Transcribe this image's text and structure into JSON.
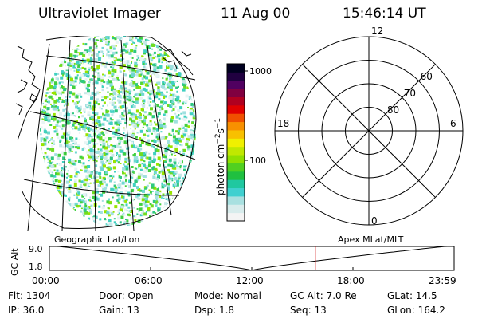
{
  "header": {
    "title": "Ultraviolet Imager",
    "date": "11 Aug 00",
    "time": "15:46:14 UT"
  },
  "colorbar": {
    "unit_label": "photon cm",
    "unit_sup1": "−2",
    "unit_mid": "s",
    "unit_sup2": "−1",
    "ticks": [
      {
        "label": "1000",
        "value": 1000
      },
      {
        "label": "100",
        "value": 100
      }
    ],
    "stops": [
      "#f4f4f4",
      "#d8ecec",
      "#a8e0e0",
      "#40d0d0",
      "#20c8a0",
      "#20c040",
      "#50d020",
      "#90e000",
      "#c0e800",
      "#f0f000",
      "#f8c000",
      "#f89000",
      "#f05000",
      "#e00000",
      "#b00020",
      "#800040",
      "#500060",
      "#200040",
      "#000020"
    ]
  },
  "polar": {
    "mlt_labels": [
      {
        "label": "12",
        "angle_deg": 0
      },
      {
        "label": "6",
        "angle_deg": 90
      },
      {
        "label": "0",
        "angle_deg": 180
      },
      {
        "label": "18",
        "angle_deg": 270
      }
    ],
    "lat_labels": [
      {
        "label": "60",
        "lat": 60
      },
      {
        "label": "70",
        "lat": 70
      },
      {
        "label": "80",
        "lat": 80
      }
    ],
    "lat_min": 50
  },
  "alt_plot": {
    "left_label": "Geographic Lat/Lon",
    "right_label": "Apex MLat/MLT",
    "ylabel": "GC Alt",
    "yticks": [
      {
        "label": "9.0",
        "value": 9.0
      },
      {
        "label": "1.8",
        "value": 1.8
      }
    ],
    "xticks": [
      "00:00",
      "06:00",
      "12:00",
      "18:00",
      "23:59"
    ],
    "current_time_hours": 15.77,
    "min_time_hours": 12.0,
    "marker_color": "#cc0000"
  },
  "footer": {
    "flt": "Flt: 1304",
    "ip": "IP: 36.0",
    "door": "Door: Open",
    "gain": "Gain: 13",
    "mode": "Mode: Normal",
    "dsp": "Dsp:    1.8",
    "gc_alt": "GC Alt: 7.0 Re",
    "seq": "Seq: 13",
    "glat": "GLat:   14.5",
    "glon": "GLon: 164.2"
  }
}
